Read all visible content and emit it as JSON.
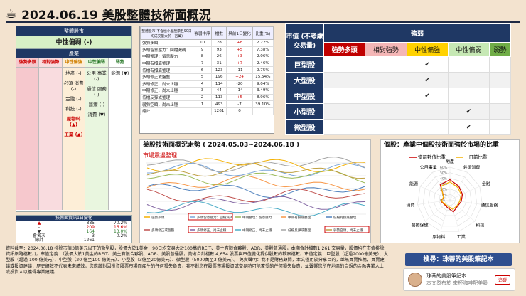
{
  "title": {
    "icon": "coffee-cup-icon",
    "text": "2024.06.19 美股整體技術面概況"
  },
  "left": {
    "header": "整體股市",
    "status": "中性偏弱 (-)",
    "section": "產業",
    "columns": [
      {
        "label": "強勢多頭",
        "items": []
      },
      {
        "label": "相對強勢",
        "items": []
      },
      {
        "label": "中性偏強",
        "items": [
          "地產 (-)",
          "必須 消費 (-)",
          "金融 (-)",
          "科技 (-)",
          "原物料 (▲)",
          "工業 (▲)"
        ]
      },
      {
        "label": "中性偏弱",
        "items": [
          "公用 事業 (-)",
          "通信 服務 (-)",
          "醫療 (-)",
          "消費 (▼)"
        ]
      },
      {
        "label": "弱勢",
        "items": [
          "能源 (▼)"
        ]
      }
    ],
    "mini": {
      "header": "技術面資訊1日變化",
      "rows": [
        [
          "▲",
          "885",
          "70.2%"
        ],
        [
          "-",
          "209",
          "16.6%"
        ],
        [
          "▼",
          "164",
          "13.0%"
        ],
        [
          "會名次",
          "3",
          "0.2%"
        ],
        [
          "總計",
          "1261",
          ""
        ]
      ]
    }
  },
  "mid_table": {
    "headers": [
      "整體股市(不含極小型股票且90日均成交量大於一百萬)",
      "強弱排序",
      "檔數",
      "與前1日變化",
      "比重(%)"
    ],
    "rows": [
      [
        "強勢多頭",
        "10",
        "28",
        "+8",
        "2.22%"
      ],
      [
        "多頭留意壓力：回檔減碼",
        "9",
        "93",
        "+5",
        "7.38%"
      ],
      [
        "中期整理：留意壓力",
        "8",
        "26",
        "+3",
        "2.06%"
      ],
      [
        "中期有撐底整理",
        "7",
        "31",
        "+7",
        "2.46%"
      ],
      [
        "低檔有撐底整理",
        "6",
        "123",
        "-11",
        "9.75%"
      ],
      [
        "多頭修正或盤整",
        "5",
        "196",
        "+24",
        "15.54%"
      ],
      [
        "多頭修正，尚未止穩",
        "4",
        "114",
        "-20",
        "9.04%"
      ],
      [
        "中期修正，尚未止穩",
        "3",
        "44",
        "-14",
        "3.49%"
      ],
      [
        "低檔反彈或整理",
        "2",
        "113",
        "+5",
        "8.96%"
      ],
      [
        "弱勢空頭，尚未止穩",
        "1",
        "493",
        "-7",
        "39.10%"
      ],
      [
        "總計",
        "",
        "1261",
        "0",
        ""
      ]
    ]
  },
  "grid": {
    "corner": "市值 (不考慮 交易量)",
    "head": "強弱",
    "subs": [
      "強勢多頭",
      "相對強勢",
      "中性偏強",
      "中性偏弱",
      "弱勢"
    ],
    "rows": [
      {
        "label": "巨型股",
        "mark_col": 2,
        "mark": "✔"
      },
      {
        "label": "大型股",
        "mark_col": 2,
        "mark": "✔"
      },
      {
        "label": "中型股",
        "mark_col": 2,
        "mark": "✔"
      },
      {
        "label": "小型股",
        "mark_col": 3,
        "mark": "✔"
      },
      {
        "label": "微型股",
        "mark_col": 3,
        "mark": "✔"
      }
    ]
  },
  "chart1": {
    "title": "美股技術面概況走勢 ( 2024.05.03~2024.06.18 )",
    "subtitle": "市場震盪整理",
    "legend": [
      "強勢多頭",
      "多頭留意壓力：回檔減碼",
      "中期整理：留意壓力",
      "中期有撐底整理",
      "低檔有撐底整理",
      "多頭修正或盤整",
      "多頭修正，尚未止穩",
      "中期修正，尚未止穩",
      "低檔反彈或整理",
      "弱勢空頭，尚未止穩"
    ]
  },
  "chart2": {
    "title": "個股：產業中個股技術面強於市場的比重",
    "legend": [
      "當前數值比重",
      "一日前比重"
    ],
    "axes": [
      "地產",
      "必須消費",
      "金融",
      "通信服務",
      "科技",
      "工業",
      "原物料",
      "醫療保健",
      "消費",
      "能源",
      "公用事業"
    ],
    "ticks": [
      "0%",
      "10%",
      "20%",
      "30%",
      "40%",
      "50%",
      "60%"
    ]
  },
  "notes": "資料截至：2024.06.18 排除市值3億美元以下的微型股，股價大於1美金，90日均交易大於100萬的REIT、美主有限合夥股、ADR、美股普通股，本期合計檔數1,261 交易量，股價均在市值排除資訊網路檔數。)，市值定義：（股價大於1美金的REIT、美主有限合夥股、ADR、美股普通股，美術合計檔數 4,654 股票與市值變化提供股數的觀察檔數。市值定義：巨型股（超過2000億美元）、大型股（超過 100 億美元）、中型股（20 億至100 億美元）、小型股（3億至20億美元）、微型股（5000萬至3 億美元）。 免責聲明：我不是財務顧問，本文僅用於分享目的，並無買賣推薦，買賣建議或投資建議，歷史績效不代表未來績效，您應該對因投資股票市場而產生的任何損失負責，我不對您在股票市場投資或交易時可能蒙受的任何損失負責，並聲響您所在地區的合規的金融專業人士或投資人以獲得專業建議。",
  "search": "搜尋：珠蒂的美股筆記本",
  "card": {
    "name": "珠蒂的美股筆記本",
    "sub": "本文發布於 來杯咖啡配美股",
    "follow": "追蹤"
  },
  "colors": {
    "navy": "#1f3864",
    "red": "#c00000",
    "yellow": "#ffd200",
    "green": "#70ad47",
    "bg": "#f3e3cf"
  }
}
